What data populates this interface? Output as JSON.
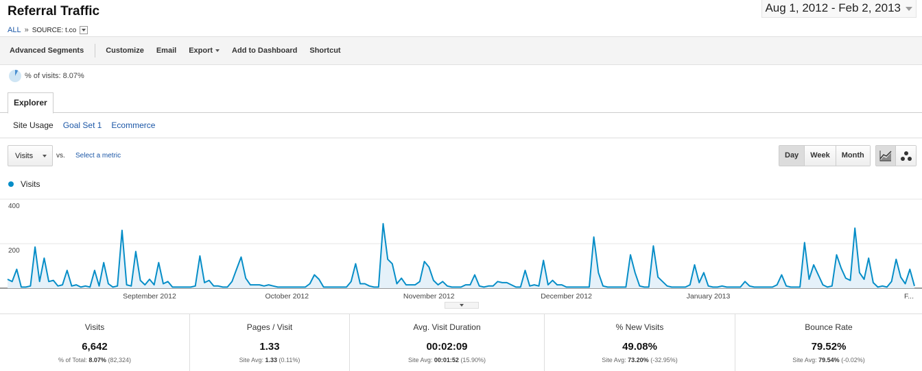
{
  "page": {
    "title": "Referral Traffic",
    "date_range": "Aug 1, 2012 - Feb 2, 2013"
  },
  "breadcrumb": {
    "all": "ALL",
    "separator": "»",
    "source": "SOURCE: t.co"
  },
  "toolbar": {
    "advanced_segments": "Advanced Segments",
    "customize": "Customize",
    "email": "Email",
    "export": "Export",
    "add_to_dashboard": "Add to Dashboard",
    "shortcut": "Shortcut"
  },
  "segment": {
    "pct_of_visits": "% of visits: 8.07%",
    "pct_value": 8.07
  },
  "tabs": {
    "explorer": "Explorer",
    "subtabs": [
      "Site Usage",
      "Goal Set 1",
      "Ecommerce"
    ]
  },
  "controls": {
    "metric": "Visits",
    "vs": "vs.",
    "select_metric": "Select a metric",
    "periods": [
      "Day",
      "Week",
      "Month"
    ],
    "selected_period": "Day",
    "chart_modes": [
      "line-chart-icon",
      "motion-chart-icon"
    ]
  },
  "colors": {
    "series": "#058dc7",
    "fill": "#e5f1f9",
    "link": "#1a56a6"
  },
  "chart_data": {
    "type": "area",
    "series": [
      {
        "name": "Visits"
      }
    ],
    "y_ticks": [
      "400",
      "200"
    ],
    "ylim": [
      0,
      400
    ],
    "x_labels": [
      "September 2012",
      "October 2012",
      "November 2012",
      "December 2012",
      "January 2013",
      "F..."
    ],
    "x_label_days": [
      31,
      61,
      92,
      122,
      153,
      184
    ],
    "values": [
      40,
      30,
      85,
      5,
      5,
      10,
      185,
      30,
      135,
      30,
      35,
      10,
      15,
      80,
      10,
      15,
      5,
      10,
      5,
      80,
      10,
      115,
      20,
      5,
      10,
      260,
      15,
      10,
      165,
      35,
      15,
      40,
      15,
      115,
      20,
      30,
      5,
      5,
      5,
      5,
      5,
      10,
      145,
      25,
      35,
      10,
      10,
      5,
      5,
      30,
      85,
      140,
      45,
      15,
      15,
      15,
      10,
      15,
      10,
      5,
      5,
      5,
      5,
      5,
      5,
      5,
      20,
      60,
      40,
      5,
      5,
      5,
      5,
      5,
      5,
      30,
      110,
      20,
      20,
      10,
      5,
      5,
      290,
      130,
      110,
      20,
      45,
      15,
      15,
      15,
      30,
      120,
      95,
      35,
      15,
      30,
      10,
      5,
      5,
      5,
      15,
      15,
      60,
      10,
      5,
      10,
      10,
      30,
      25,
      25,
      15,
      5,
      5,
      80,
      10,
      15,
      10,
      125,
      15,
      35,
      15,
      15,
      5,
      5,
      5,
      5,
      5,
      5,
      230,
      70,
      10,
      5,
      5,
      5,
      5,
      5,
      150,
      70,
      10,
      5,
      5,
      190,
      50,
      30,
      10,
      5,
      5,
      5,
      5,
      15,
      105,
      25,
      70,
      10,
      5,
      5,
      10,
      5,
      5,
      5,
      5,
      30,
      10,
      5,
      5,
      5,
      5,
      5,
      15,
      60,
      10,
      5,
      5,
      5,
      205,
      40,
      105,
      60,
      15,
      5,
      10,
      150,
      90,
      45,
      35,
      270,
      70,
      40,
      135,
      25,
      5,
      10,
      5,
      30,
      130,
      50,
      20,
      85,
      10
    ]
  },
  "scorecards": [
    {
      "label": "Visits",
      "value": "6,642",
      "sub_prefix": "% of Total:",
      "sub_value": "8.07%",
      "sub_suffix": "(82,324)"
    },
    {
      "label": "Pages / Visit",
      "value": "1.33",
      "sub_prefix": "Site Avg:",
      "sub_value": "1.33",
      "sub_suffix": "(0.11%)"
    },
    {
      "label": "Avg. Visit Duration",
      "value": "00:02:09",
      "sub_prefix": "Site Avg:",
      "sub_value": "00:01:52",
      "sub_suffix": "(15.90%)"
    },
    {
      "label": "% New Visits",
      "value": "49.08%",
      "sub_prefix": "Site Avg:",
      "sub_value": "73.20%",
      "sub_suffix": "(-32.95%)"
    },
    {
      "label": "Bounce Rate",
      "value": "79.52%",
      "sub_prefix": "Site Avg:",
      "sub_value": "79.54%",
      "sub_suffix": "(-0.02%)"
    }
  ]
}
